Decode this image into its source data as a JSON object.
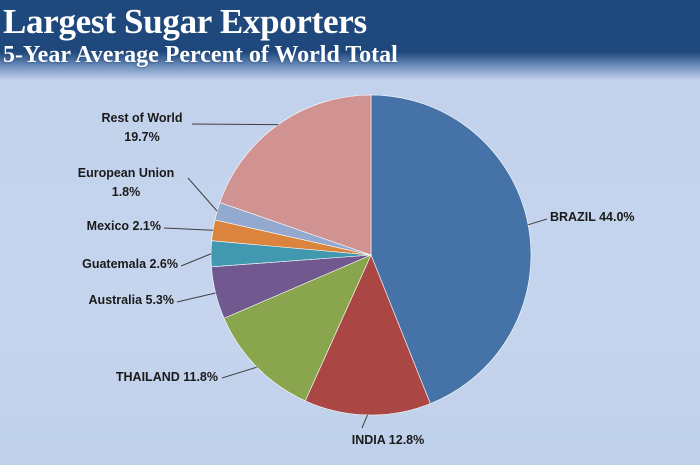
{
  "header": {
    "title": "Largest Sugar Exporters",
    "subtitle": "5-Year Average Percent of World Total"
  },
  "chart_data": {
    "type": "pie",
    "title": "Largest Sugar Exporters",
    "subtitle": "5-Year Average Percent of World Total",
    "start_angle": "12 o'clock",
    "direction": "clockwise",
    "slices": [
      {
        "label": "BRAZIL",
        "value": 44.0,
        "display": "BRAZIL 44.0%",
        "color": "#4572a7"
      },
      {
        "label": "INDIA",
        "value": 12.8,
        "display": "INDIA 12.8%",
        "color": "#aa4643"
      },
      {
        "label": "THAILAND",
        "value": 11.8,
        "display": "THAILAND 11.8%",
        "color": "#89a54e"
      },
      {
        "label": "Australia",
        "value": 5.3,
        "display": "Australia 5.3%",
        "color": "#71588f"
      },
      {
        "label": "Guatemala",
        "value": 2.6,
        "display": "Guatemala 2.6%",
        "color": "#4198af"
      },
      {
        "label": "Mexico",
        "value": 2.1,
        "display": "Mexico 2.1%",
        "color": "#db843d"
      },
      {
        "label": "European Union",
        "value": 1.8,
        "display": "European Union|1.8%",
        "color": "#93a9cf"
      },
      {
        "label": "Rest of World",
        "value": 19.7,
        "display": "Rest of World|19.7%",
        "color": "#d19392"
      }
    ]
  }
}
